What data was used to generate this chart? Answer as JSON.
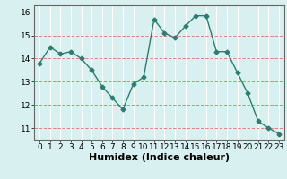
{
  "x": [
    0,
    1,
    2,
    3,
    4,
    5,
    6,
    7,
    8,
    9,
    10,
    11,
    12,
    13,
    14,
    15,
    16,
    17,
    18,
    19,
    20,
    21,
    22,
    23
  ],
  "y": [
    13.8,
    14.5,
    14.2,
    14.3,
    14.0,
    13.5,
    12.8,
    12.3,
    11.8,
    12.9,
    13.2,
    15.7,
    15.1,
    14.9,
    15.4,
    15.85,
    15.85,
    14.3,
    14.3,
    13.4,
    12.5,
    11.3,
    11.0,
    10.75
  ],
  "line_color": "#2d7d6e",
  "marker": "D",
  "markersize": 2.5,
  "linewidth": 1.0,
  "xlabel": "Humidex (Indice chaleur)",
  "xlim": [
    -0.5,
    23.5
  ],
  "ylim": [
    10.5,
    16.3
  ],
  "yticks": [
    11,
    12,
    13,
    14,
    15,
    16
  ],
  "xticks": [
    0,
    1,
    2,
    3,
    4,
    5,
    6,
    7,
    8,
    9,
    10,
    11,
    12,
    13,
    14,
    15,
    16,
    17,
    18,
    19,
    20,
    21,
    22,
    23
  ],
  "xtick_labels": [
    "0",
    "1",
    "2",
    "3",
    "4",
    "5",
    "6",
    "7",
    "8",
    "9",
    "10",
    "11",
    "12",
    "13",
    "14",
    "15",
    "16",
    "17",
    "18",
    "19",
    "20",
    "21",
    "22",
    "23"
  ],
  "background_color": "#d8f0f0",
  "grid_color": "#ffffff",
  "red_line_color": "#e08080",
  "tick_fontsize": 6.5,
  "xlabel_fontsize": 8
}
